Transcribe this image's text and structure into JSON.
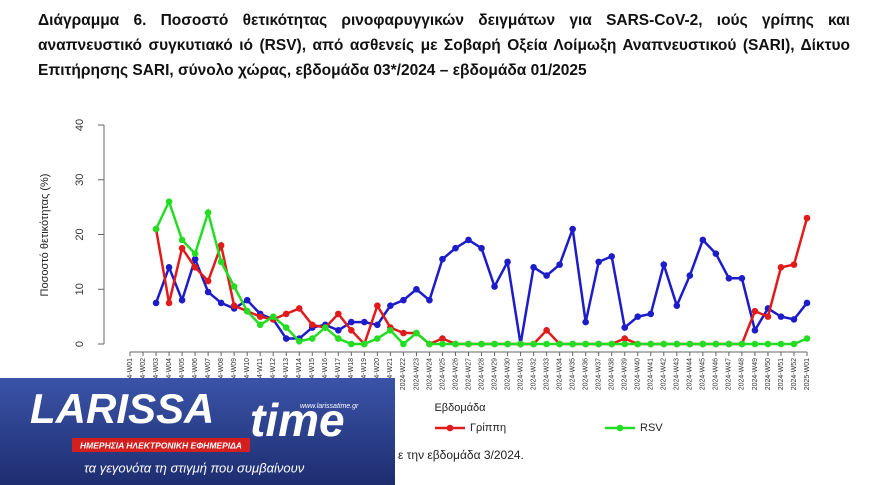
{
  "chart_data": {
    "type": "line",
    "title": "Διάγραμμα 6. Ποσοστό θετικότητας ρινοφαρυγγικών δειγμάτων για SARS-CoV-2, ιούς γρίπης και αναπνευστικό συγκυτιακό ιό (RSV), από ασθενείς με Σοβαρή Οξεία Λοίμωξη Αναπνευστικού (SARI), Δίκτυο Επιτήρησης SARI, σύνολο χώρας, εβδομάδα 03*/2024 – εβδομάδα 01/2025",
    "y_label": "Ποσοστό θετικότητας (%)",
    "x_label": "Εβδομάδα",
    "footnote": "ε την εβδομάδα 3/2024.",
    "ylim": [
      0,
      40
    ],
    "yticks": [
      0,
      10,
      20,
      30,
      40
    ],
    "categories": [
      "2024-W01",
      "2024-W02",
      "2024-W03",
      "2024-W04",
      "2024-W05",
      "2024-W06",
      "2024-W07",
      "2024-W08",
      "2024-W09",
      "2024-W10",
      "2024-W11",
      "2024-W12",
      "2024-W13",
      "2024-W14",
      "2024-W15",
      "2024-W16",
      "2024-W17",
      "2024-W18",
      "2024-W19",
      "2024-W20",
      "2024-W21",
      "2024-W22",
      "2024-W23",
      "2024-W24",
      "2024-W25",
      "2024-W26",
      "2024-W27",
      "2024-W28",
      "2024-W29",
      "2024-W30",
      "2024-W31",
      "2024-W32",
      "2024-W33",
      "2024-W34",
      "2024-W35",
      "2024-W36",
      "2024-W37",
      "2024-W38",
      "2024-W39",
      "2024-W40",
      "2024-W41",
      "2024-W42",
      "2024-W43",
      "2024-W44",
      "2024-W45",
      "2024-W46",
      "2024-W47",
      "2024-W48",
      "2024-W49",
      "2024-W50",
      "2024-W51",
      "2024-W52",
      "2025-W01"
    ],
    "series": [
      {
        "color": "#1c1cc8",
        "values": [
          null,
          null,
          7.5,
          14,
          8,
          15.5,
          9.5,
          7.5,
          6.5,
          8,
          5.5,
          4.5,
          1,
          1,
          3,
          3.5,
          2.5,
          4,
          4,
          3.5,
          7,
          8,
          10,
          8,
          15.5,
          17.5,
          19,
          17.5,
          10.5,
          15,
          0,
          14,
          12.5,
          14.5,
          21,
          4,
          15,
          16,
          3,
          5,
          5.5,
          14.5,
          7,
          12.5,
          19,
          16.5,
          12,
          12,
          2.5,
          6.5,
          5,
          4.5,
          7.5
        ]
      },
      {
        "name": "Γρίππη",
        "color": "#e01b1b",
        "values": [
          null,
          null,
          21,
          7.5,
          17.5,
          14,
          11.5,
          18,
          7,
          6,
          5,
          4.5,
          5.5,
          6.5,
          3.5,
          3,
          5.5,
          2.5,
          0,
          7,
          3,
          2,
          2,
          0,
          1,
          0,
          0,
          0,
          0,
          0,
          0,
          0,
          2.5,
          0,
          0,
          0,
          0,
          0,
          1,
          0,
          0,
          0,
          0,
          0,
          0,
          0,
          0,
          0,
          6,
          5,
          14,
          14.5,
          23
        ]
      },
      {
        "name": "RSV",
        "color": "#22dd22",
        "values": [
          null,
          null,
          21,
          26,
          19,
          16.5,
          24,
          15,
          10.5,
          6,
          3.5,
          5,
          3,
          0.5,
          1,
          3,
          1,
          0,
          0,
          1,
          2.5,
          0,
          2,
          0,
          0,
          0,
          0,
          0,
          0,
          0,
          0,
          0,
          0,
          0,
          0,
          0,
          0,
          0,
          0,
          0,
          0,
          0,
          0,
          0,
          0,
          0,
          0,
          0,
          0,
          0,
          0,
          0,
          1
        ]
      }
    ]
  },
  "watermark": {
    "brand_left": "LARISSA",
    "brand_right": "time",
    "url": "www.larissatime.gr",
    "tagline": "ΗΜΕΡΗΣΙΑ ΗΛΕΚΤΡΟΝΙΚΗ ΕΦΗΜΕΡΙΔΑ",
    "slogan": "τα γεγονότα τη στιγμή που συμβαίνουν"
  }
}
